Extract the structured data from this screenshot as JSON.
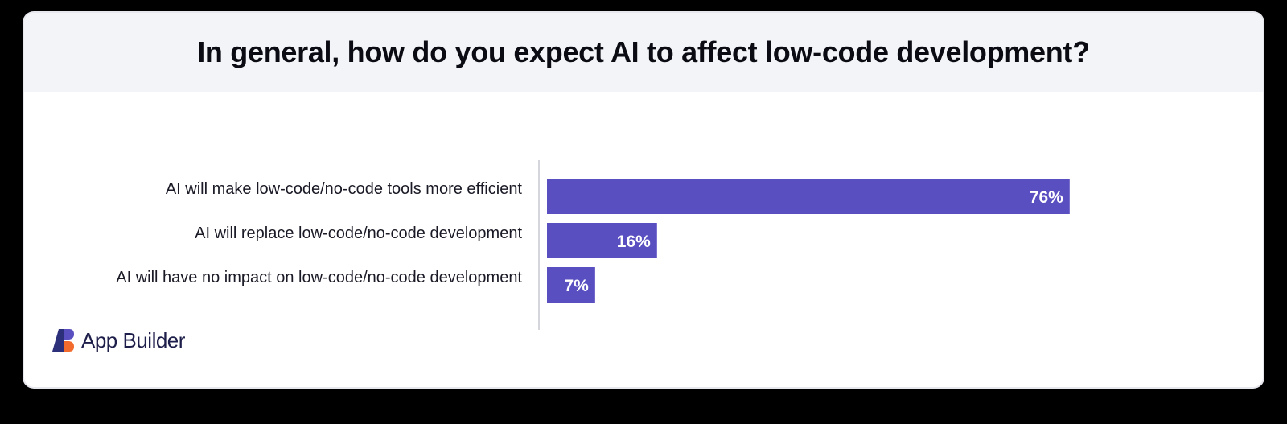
{
  "chart_data": {
    "type": "bar",
    "orientation": "horizontal",
    "title": "In general, how do you expect AI to affect low-code development?",
    "categories": [
      "AI will make low-code/no-code tools more efficient",
      "AI will replace low-code/no-code development",
      "AI will have no impact on low-code/no-code development"
    ],
    "values": [
      76,
      16,
      7
    ],
    "value_labels": [
      "76%",
      "16%",
      "7%"
    ],
    "xlim": [
      0,
      100
    ],
    "unit": "%",
    "bar_color": "#5a4fc0",
    "axis_color": "#d5d5dc",
    "grid": false,
    "legend": "none"
  },
  "brand": {
    "name": "App Builder",
    "mark_colors": [
      "#2c2f7a",
      "#f26b2c",
      "#5a4fc0"
    ],
    "icon": "app-builder-logo-icon"
  }
}
